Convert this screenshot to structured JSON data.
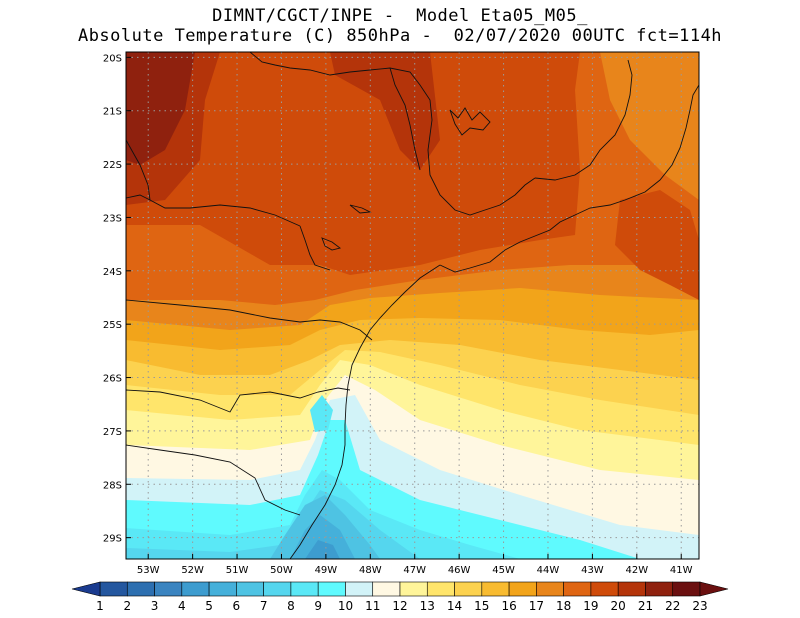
{
  "header": {
    "line1": "DIMNT/CGCT/INPE -  Model Eta05_M05_",
    "line2": "Absolute Temperature (C) 850hPa -  02/07/2020 00UTC fct=114h"
  },
  "map": {
    "lon_range": [
      -53.5,
      -40.6
    ],
    "lat_range": [
      -29.4,
      -19.9
    ],
    "lat_ticks": [
      "20S",
      "21S",
      "22S",
      "23S",
      "24S",
      "25S",
      "26S",
      "27S",
      "28S",
      "29S"
    ],
    "lon_ticks": [
      "53W",
      "52W",
      "51W",
      "50W",
      "49W",
      "48W",
      "47W",
      "46W",
      "45W",
      "44W",
      "43W",
      "42W",
      "41W"
    ],
    "grid": "dotted gray every 1 degree"
  },
  "colorbar": {
    "labels": [
      "1",
      "2",
      "3",
      "4",
      "5",
      "6",
      "7",
      "8",
      "9",
      "10",
      "11",
      "12",
      "13",
      "14",
      "15",
      "16",
      "17",
      "18",
      "19",
      "20",
      "21",
      "22",
      "23"
    ],
    "colors": [
      "#1a3b8f",
      "#24579f",
      "#2d6fb0",
      "#3a84c0",
      "#3d9ccf",
      "#45b0da",
      "#4ec3e3",
      "#55d6ee",
      "#5ae8f6",
      "#5ffafe",
      "#d2f3f8",
      "#fff8e3",
      "#fff59a",
      "#ffe56b",
      "#fcd24f",
      "#f8bb30",
      "#f2a41a",
      "#e8851b",
      "#df6512",
      "#cf4b0a",
      "#b4340a",
      "#8f210e",
      "#6b1010"
    ],
    "left_arrow_color": "#1a3b8f",
    "right_arrow_color": "#6b1010"
  }
}
